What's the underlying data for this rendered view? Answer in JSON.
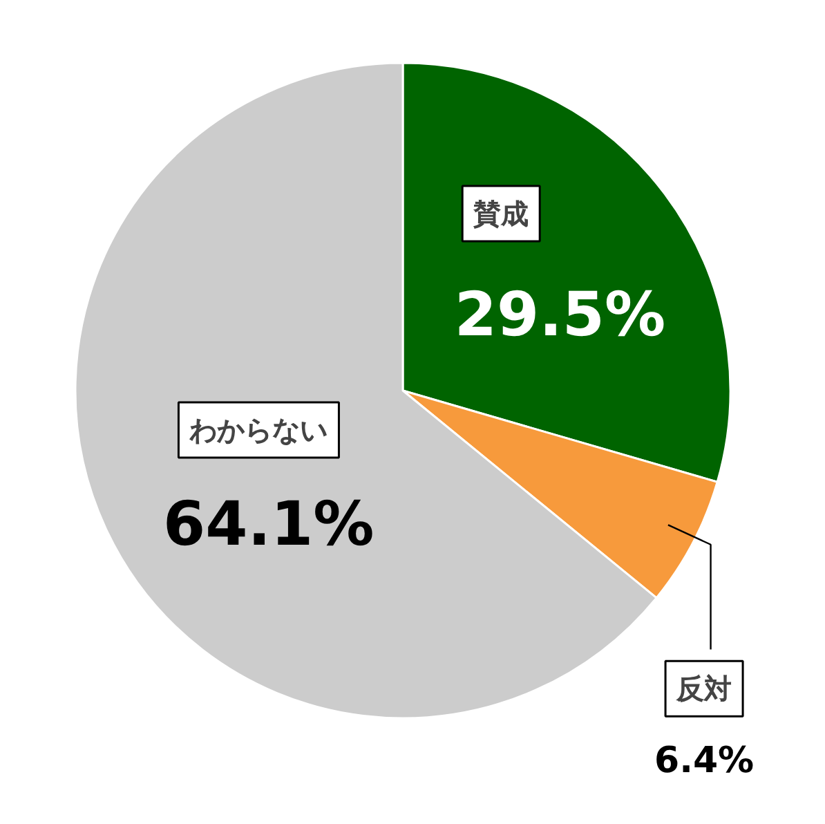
{
  "chart_data": {
    "type": "pie",
    "categories": [
      "賛成",
      "反対",
      "わからない"
    ],
    "values": [
      29.5,
      6.4,
      64.1
    ],
    "colors": [
      "#006400",
      "#f79a3c",
      "#cccccc"
    ],
    "value_labels": [
      "29.5%",
      "6.4%",
      "64.1%"
    ]
  }
}
